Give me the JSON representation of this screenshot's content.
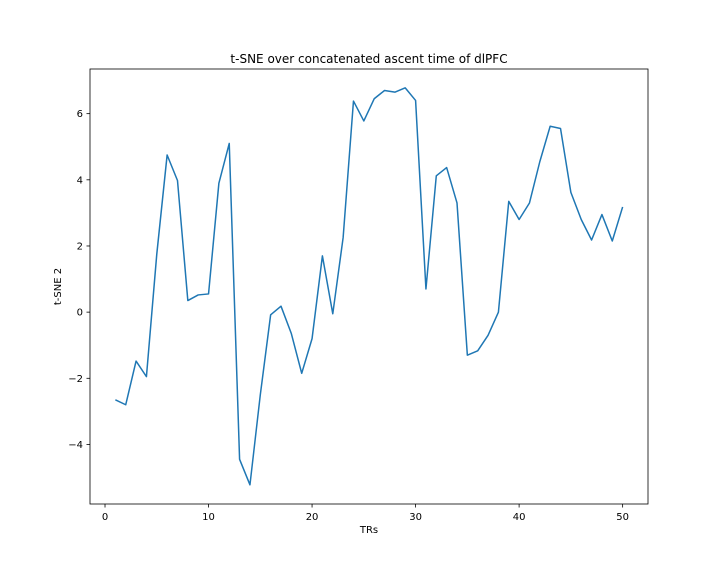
{
  "chart_data": {
    "type": "line",
    "title": "t-SNE over concatenated ascent time of dlPFC",
    "xlabel": "TRs",
    "ylabel": "t-SNE 2",
    "xlim": [
      -1.45,
      52.45
    ],
    "ylim": [
      -5.8,
      7.35
    ],
    "xticks": [
      0,
      10,
      20,
      30,
      40,
      50
    ],
    "xtick_labels": [
      "0",
      "10",
      "20",
      "30",
      "40",
      "50"
    ],
    "yticks": [
      -4,
      -2,
      0,
      2,
      4,
      6
    ],
    "ytick_labels": [
      "−4",
      "−2",
      "0",
      "2",
      "4",
      "6"
    ],
    "grid": false,
    "legend": "none",
    "line_color": "#1f77b4",
    "series": [
      {
        "x": [
          1,
          2,
          3,
          4,
          5,
          6,
          7,
          8,
          9,
          10,
          11,
          12,
          13,
          14,
          15,
          16,
          17,
          18,
          19,
          20,
          21,
          22,
          23,
          24,
          25,
          26,
          27,
          28,
          29,
          30,
          31,
          32,
          33,
          34,
          35,
          36,
          37,
          38,
          39,
          40,
          41,
          42,
          43,
          44,
          45,
          46,
          47,
          48,
          49,
          50
        ],
        "y": [
          -2.65,
          -2.8,
          -1.48,
          -1.95,
          1.75,
          4.75,
          3.98,
          0.35,
          0.52,
          0.55,
          3.9,
          5.1,
          -4.45,
          -5.22,
          -2.5,
          -0.08,
          0.18,
          -0.65,
          -1.85,
          -0.8,
          1.7,
          -0.05,
          2.25,
          6.38,
          5.78,
          6.45,
          6.7,
          6.65,
          6.78,
          6.4,
          0.7,
          4.12,
          4.37,
          3.3,
          -1.3,
          -1.17,
          -0.7,
          0.0,
          3.35,
          2.8,
          3.3,
          4.55,
          5.62,
          5.55,
          3.62,
          2.8,
          2.18,
          2.95,
          2.15,
          3.18
        ]
      }
    ]
  }
}
